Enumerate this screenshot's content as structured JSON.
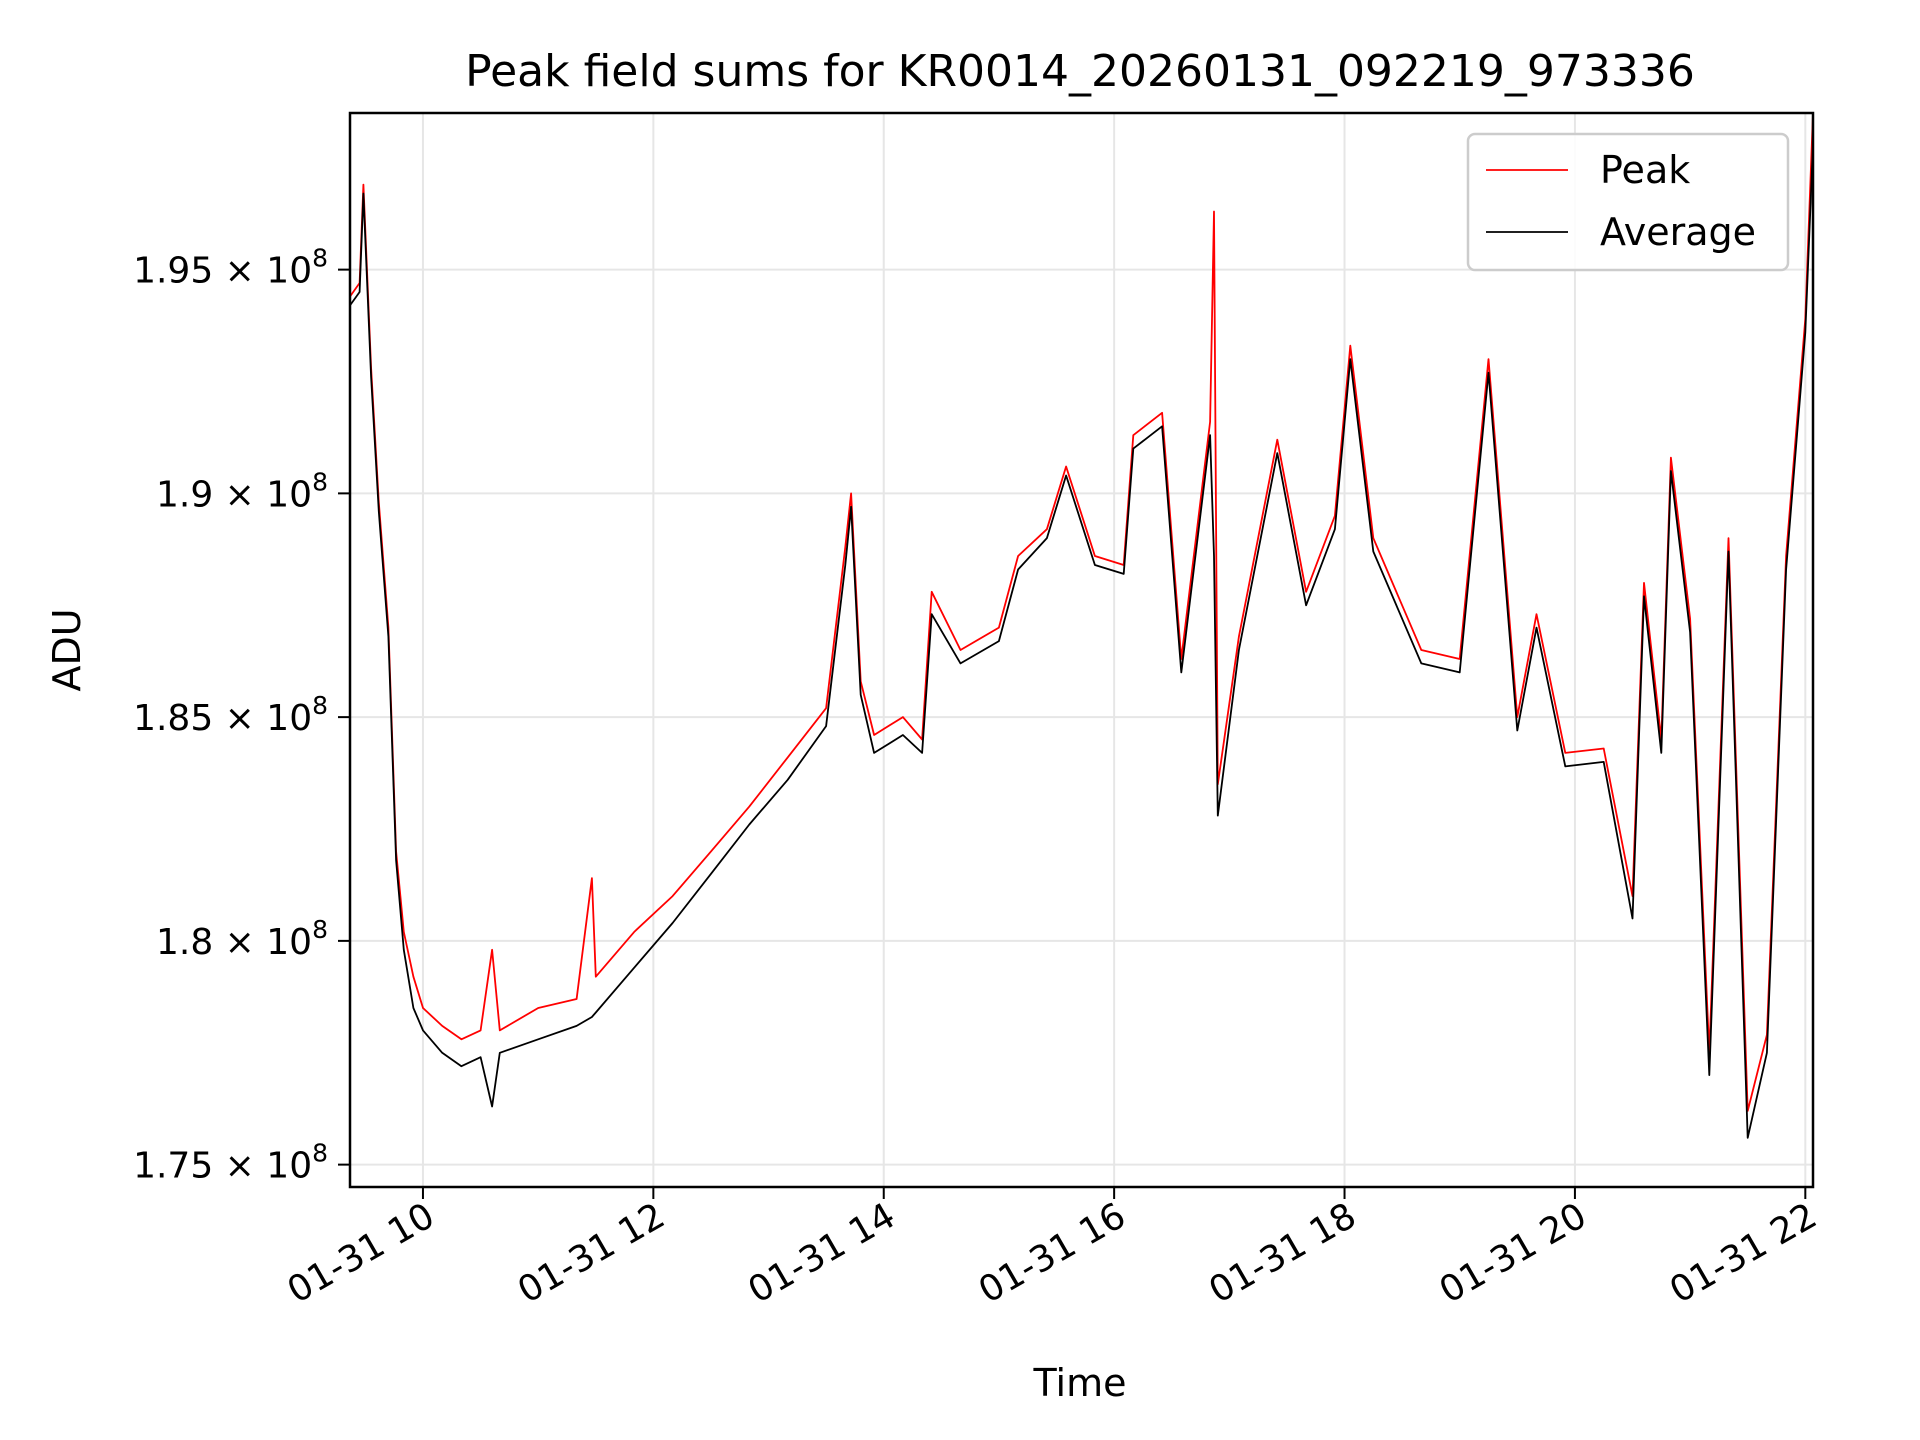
{
  "chart_data": {
    "type": "line",
    "title": "Peak field sums for KR0014_20260131_092219_973336",
    "xlabel": "Time",
    "ylabel": "ADU",
    "x_range": [
      "01-31 09:22",
      "01-31 22:04"
    ],
    "y_range": [
      174500000,
      198500000
    ],
    "x_ticks": [
      {
        "value": "01-31 10:00",
        "label": "01-31 10"
      },
      {
        "value": "01-31 12:00",
        "label": "01-31 12"
      },
      {
        "value": "01-31 14:00",
        "label": "01-31 14"
      },
      {
        "value": "01-31 16:00",
        "label": "01-31 16"
      },
      {
        "value": "01-31 18:00",
        "label": "01-31 18"
      },
      {
        "value": "01-31 20:00",
        "label": "01-31 20"
      },
      {
        "value": "01-31 22:00",
        "label": "01-31 22"
      }
    ],
    "y_ticks": [
      {
        "value": 175000000,
        "mantissa": "1.75",
        "base": "10",
        "exponent": "8"
      },
      {
        "value": 180000000,
        "mantissa": "1.8",
        "base": "10",
        "exponent": "8"
      },
      {
        "value": 185000000,
        "mantissa": "1.85",
        "base": "10",
        "exponent": "8"
      },
      {
        "value": 190000000,
        "mantissa": "1.9",
        "base": "10",
        "exponent": "8"
      },
      {
        "value": 195000000,
        "mantissa": "1.95",
        "base": "10",
        "exponent": "8"
      }
    ],
    "grid": true,
    "legend_position": "top-right",
    "series": [
      {
        "name": "Peak",
        "color": "#ff0000",
        "points": [
          [
            "01-31 09:22",
            194400000
          ],
          [
            "01-31 09:27",
            194700000
          ],
          [
            "01-31 09:29",
            196900000
          ],
          [
            "01-31 09:33",
            192800000
          ],
          [
            "01-31 09:37",
            189800000
          ],
          [
            "01-31 09:42",
            187000000
          ],
          [
            "01-31 09:46",
            182000000
          ],
          [
            "01-31 09:50",
            180200000
          ],
          [
            "01-31 09:55",
            179200000
          ],
          [
            "01-31 10:00",
            178500000
          ],
          [
            "01-31 10:10",
            178100000
          ],
          [
            "01-31 10:20",
            177800000
          ],
          [
            "01-31 10:30",
            178000000
          ],
          [
            "01-31 10:36",
            179800000
          ],
          [
            "01-31 10:40",
            178000000
          ],
          [
            "01-31 11:00",
            178500000
          ],
          [
            "01-31 11:20",
            178700000
          ],
          [
            "01-31 11:28",
            181400000
          ],
          [
            "01-31 11:30",
            179200000
          ],
          [
            "01-31 11:50",
            180200000
          ],
          [
            "01-31 12:10",
            181000000
          ],
          [
            "01-31 12:30",
            182000000
          ],
          [
            "01-31 12:50",
            183000000
          ],
          [
            "01-31 13:10",
            184100000
          ],
          [
            "01-31 13:30",
            185200000
          ],
          [
            "01-31 13:40",
            188800000
          ],
          [
            "01-31 13:43",
            190000000
          ],
          [
            "01-31 13:48",
            185800000
          ],
          [
            "01-31 13:55",
            184600000
          ],
          [
            "01-31 14:10",
            185000000
          ],
          [
            "01-31 14:20",
            184500000
          ],
          [
            "01-31 14:25",
            187800000
          ],
          [
            "01-31 14:40",
            186500000
          ],
          [
            "01-31 15:00",
            187000000
          ],
          [
            "01-31 15:10",
            188600000
          ],
          [
            "01-31 15:25",
            189200000
          ],
          [
            "01-31 15:35",
            190600000
          ],
          [
            "01-31 15:50",
            188600000
          ],
          [
            "01-31 16:05",
            188400000
          ],
          [
            "01-31 16:10",
            191300000
          ],
          [
            "01-31 16:25",
            191800000
          ],
          [
            "01-31 16:35",
            186300000
          ],
          [
            "01-31 16:50",
            191600000
          ],
          [
            "01-31 16:52",
            196300000
          ],
          [
            "01-31 16:54",
            183500000
          ],
          [
            "01-31 17:05",
            186800000
          ],
          [
            "01-31 17:25",
            191200000
          ],
          [
            "01-31 17:40",
            187800000
          ],
          [
            "01-31 17:55",
            189500000
          ],
          [
            "01-31 18:03",
            193300000
          ],
          [
            "01-31 18:15",
            189000000
          ],
          [
            "01-31 18:40",
            186500000
          ],
          [
            "01-31 19:00",
            186300000
          ],
          [
            "01-31 19:15",
            193000000
          ],
          [
            "01-31 19:30",
            185000000
          ],
          [
            "01-31 19:40",
            187300000
          ],
          [
            "01-31 19:55",
            184200000
          ],
          [
            "01-31 20:15",
            184300000
          ],
          [
            "01-31 20:30",
            181000000
          ],
          [
            "01-31 20:36",
            188000000
          ],
          [
            "01-31 20:45",
            184500000
          ],
          [
            "01-31 20:50",
            190800000
          ],
          [
            "01-31 21:00",
            187200000
          ],
          [
            "01-31 21:10",
            177500000
          ],
          [
            "01-31 21:20",
            189000000
          ],
          [
            "01-31 21:30",
            176200000
          ],
          [
            "01-31 21:40",
            177900000
          ],
          [
            "01-31 21:50",
            188600000
          ],
          [
            "01-31 22:00",
            193900000
          ],
          [
            "01-31 22:04",
            198500000
          ]
        ]
      },
      {
        "name": "Average",
        "color": "#000000",
        "points": [
          [
            "01-31 09:22",
            194200000
          ],
          [
            "01-31 09:27",
            194500000
          ],
          [
            "01-31 09:29",
            196700000
          ],
          [
            "01-31 09:33",
            192600000
          ],
          [
            "01-31 09:37",
            189600000
          ],
          [
            "01-31 09:42",
            186800000
          ],
          [
            "01-31 09:46",
            181800000
          ],
          [
            "01-31 09:50",
            179800000
          ],
          [
            "01-31 09:55",
            178500000
          ],
          [
            "01-31 10:00",
            178000000
          ],
          [
            "01-31 10:10",
            177500000
          ],
          [
            "01-31 10:20",
            177200000
          ],
          [
            "01-31 10:30",
            177400000
          ],
          [
            "01-31 10:36",
            176300000
          ],
          [
            "01-31 10:40",
            177500000
          ],
          [
            "01-31 11:00",
            177800000
          ],
          [
            "01-31 11:20",
            178100000
          ],
          [
            "01-31 11:28",
            178300000
          ],
          [
            "01-31 11:30",
            178400000
          ],
          [
            "01-31 11:50",
            179400000
          ],
          [
            "01-31 12:10",
            180400000
          ],
          [
            "01-31 12:30",
            181500000
          ],
          [
            "01-31 12:50",
            182600000
          ],
          [
            "01-31 13:10",
            183600000
          ],
          [
            "01-31 13:30",
            184800000
          ],
          [
            "01-31 13:40",
            188400000
          ],
          [
            "01-31 13:43",
            189700000
          ],
          [
            "01-31 13:48",
            185500000
          ],
          [
            "01-31 13:55",
            184200000
          ],
          [
            "01-31 14:10",
            184600000
          ],
          [
            "01-31 14:20",
            184200000
          ],
          [
            "01-31 14:25",
            187300000
          ],
          [
            "01-31 14:40",
            186200000
          ],
          [
            "01-31 15:00",
            186700000
          ],
          [
            "01-31 15:10",
            188300000
          ],
          [
            "01-31 15:25",
            189000000
          ],
          [
            "01-31 15:35",
            190400000
          ],
          [
            "01-31 15:50",
            188400000
          ],
          [
            "01-31 16:05",
            188200000
          ],
          [
            "01-31 16:10",
            191000000
          ],
          [
            "01-31 16:25",
            191500000
          ],
          [
            "01-31 16:35",
            186000000
          ],
          [
            "01-31 16:50",
            191300000
          ],
          [
            "01-31 16:52",
            188600000
          ],
          [
            "01-31 16:54",
            182800000
          ],
          [
            "01-31 17:05",
            186500000
          ],
          [
            "01-31 17:25",
            190900000
          ],
          [
            "01-31 17:40",
            187500000
          ],
          [
            "01-31 17:55",
            189200000
          ],
          [
            "01-31 18:03",
            193000000
          ],
          [
            "01-31 18:15",
            188700000
          ],
          [
            "01-31 18:40",
            186200000
          ],
          [
            "01-31 19:00",
            186000000
          ],
          [
            "01-31 19:15",
            192700000
          ],
          [
            "01-31 19:30",
            184700000
          ],
          [
            "01-31 19:40",
            187000000
          ],
          [
            "01-31 19:55",
            183900000
          ],
          [
            "01-31 20:15",
            184000000
          ],
          [
            "01-31 20:30",
            180500000
          ],
          [
            "01-31 20:36",
            187700000
          ],
          [
            "01-31 20:45",
            184200000
          ],
          [
            "01-31 20:50",
            190500000
          ],
          [
            "01-31 21:00",
            186900000
          ],
          [
            "01-31 21:10",
            177000000
          ],
          [
            "01-31 21:20",
            188700000
          ],
          [
            "01-31 21:30",
            175600000
          ],
          [
            "01-31 21:40",
            177500000
          ],
          [
            "01-31 21:50",
            188300000
          ],
          [
            "01-31 22:00",
            193600000
          ],
          [
            "01-31 22:04",
            197800000
          ]
        ]
      }
    ]
  }
}
